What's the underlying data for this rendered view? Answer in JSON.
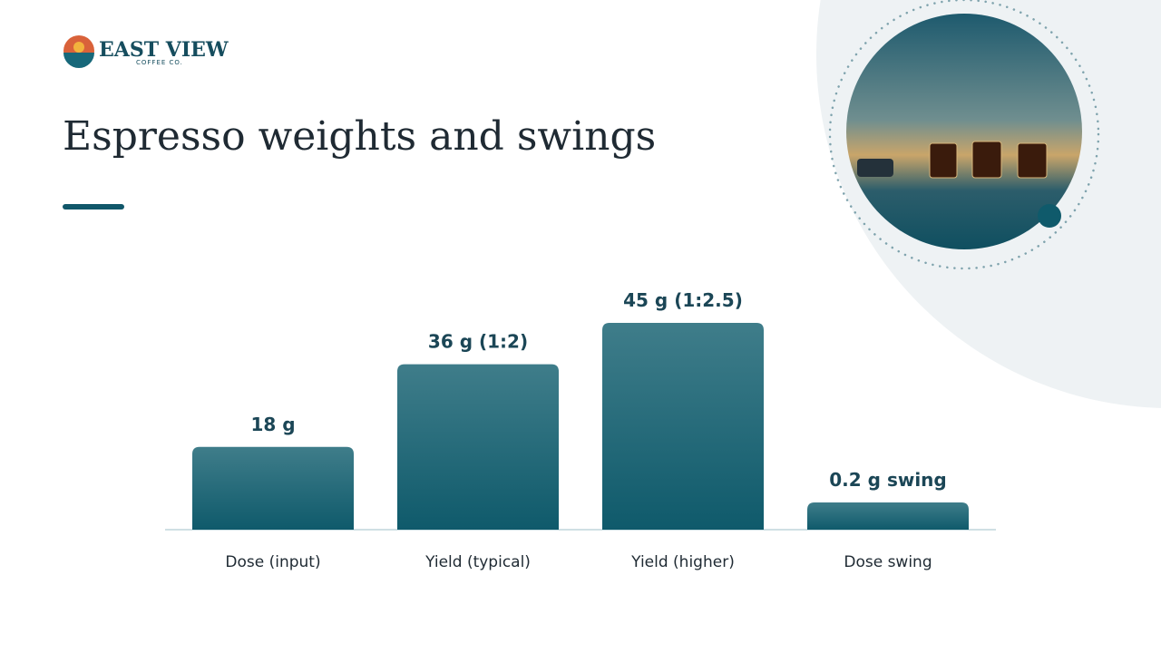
{
  "brand": {
    "name": "EAST VIEW",
    "tagline": "COFFEE CO."
  },
  "chart_data": {
    "type": "bar",
    "title": "Espresso weights and swings",
    "categories": [
      "Dose (input)",
      "Yield (typical)",
      "Yield (higher)",
      "Dose swing"
    ],
    "values": [
      18,
      36,
      45,
      0.2
    ],
    "value_labels": [
      "18 g",
      "36 g (1:2)",
      "45 g (1:2.5)",
      "0.2 g swing"
    ],
    "color": "#0f5a6b"
  }
}
